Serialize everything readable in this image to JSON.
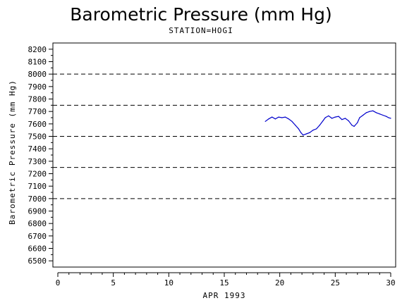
{
  "chart_data": {
    "type": "line",
    "title": "Barometric Pressure (mm Hg)",
    "subtitle": "STATION=HOGI",
    "xlabel": "APR 1993",
    "ylabel": "Barometric Pressure (mm Hg)",
    "xlim": [
      0,
      30
    ],
    "ylim": [
      6450,
      8250
    ],
    "x_ticks": [
      0,
      5,
      10,
      15,
      20,
      25,
      30
    ],
    "y_ticks": [
      6500,
      6600,
      6700,
      6800,
      6900,
      7000,
      7100,
      7200,
      7300,
      7400,
      7500,
      7600,
      7700,
      7800,
      7900,
      8000,
      8100,
      8200
    ],
    "reference_lines": [
      8000,
      7750,
      7500,
      7250,
      7000
    ],
    "line_color": "#0000cc",
    "series": [
      {
        "points": [
          [
            18.7,
            7620
          ],
          [
            19.0,
            7640
          ],
          [
            19.3,
            7655
          ],
          [
            19.6,
            7640
          ],
          [
            19.9,
            7655
          ],
          [
            20.2,
            7650
          ],
          [
            20.5,
            7655
          ],
          [
            20.8,
            7640
          ],
          [
            21.1,
            7620
          ],
          [
            21.4,
            7590
          ],
          [
            21.7,
            7560
          ],
          [
            21.9,
            7530
          ],
          [
            22.1,
            7510
          ],
          [
            22.4,
            7520
          ],
          [
            22.7,
            7530
          ],
          [
            23.0,
            7550
          ],
          [
            23.3,
            7560
          ],
          [
            23.6,
            7590
          ],
          [
            23.9,
            7625
          ],
          [
            24.1,
            7650
          ],
          [
            24.4,
            7665
          ],
          [
            24.7,
            7645
          ],
          [
            25.0,
            7655
          ],
          [
            25.3,
            7660
          ],
          [
            25.6,
            7635
          ],
          [
            25.9,
            7645
          ],
          [
            26.2,
            7625
          ],
          [
            26.5,
            7590
          ],
          [
            26.7,
            7580
          ],
          [
            27.0,
            7610
          ],
          [
            27.2,
            7650
          ],
          [
            27.5,
            7670
          ],
          [
            27.8,
            7690
          ],
          [
            28.1,
            7700
          ],
          [
            28.4,
            7705
          ],
          [
            28.7,
            7690
          ],
          [
            29.0,
            7680
          ],
          [
            29.3,
            7670
          ],
          [
            29.6,
            7660
          ],
          [
            29.8,
            7650
          ],
          [
            30.0,
            7645
          ]
        ]
      }
    ]
  }
}
